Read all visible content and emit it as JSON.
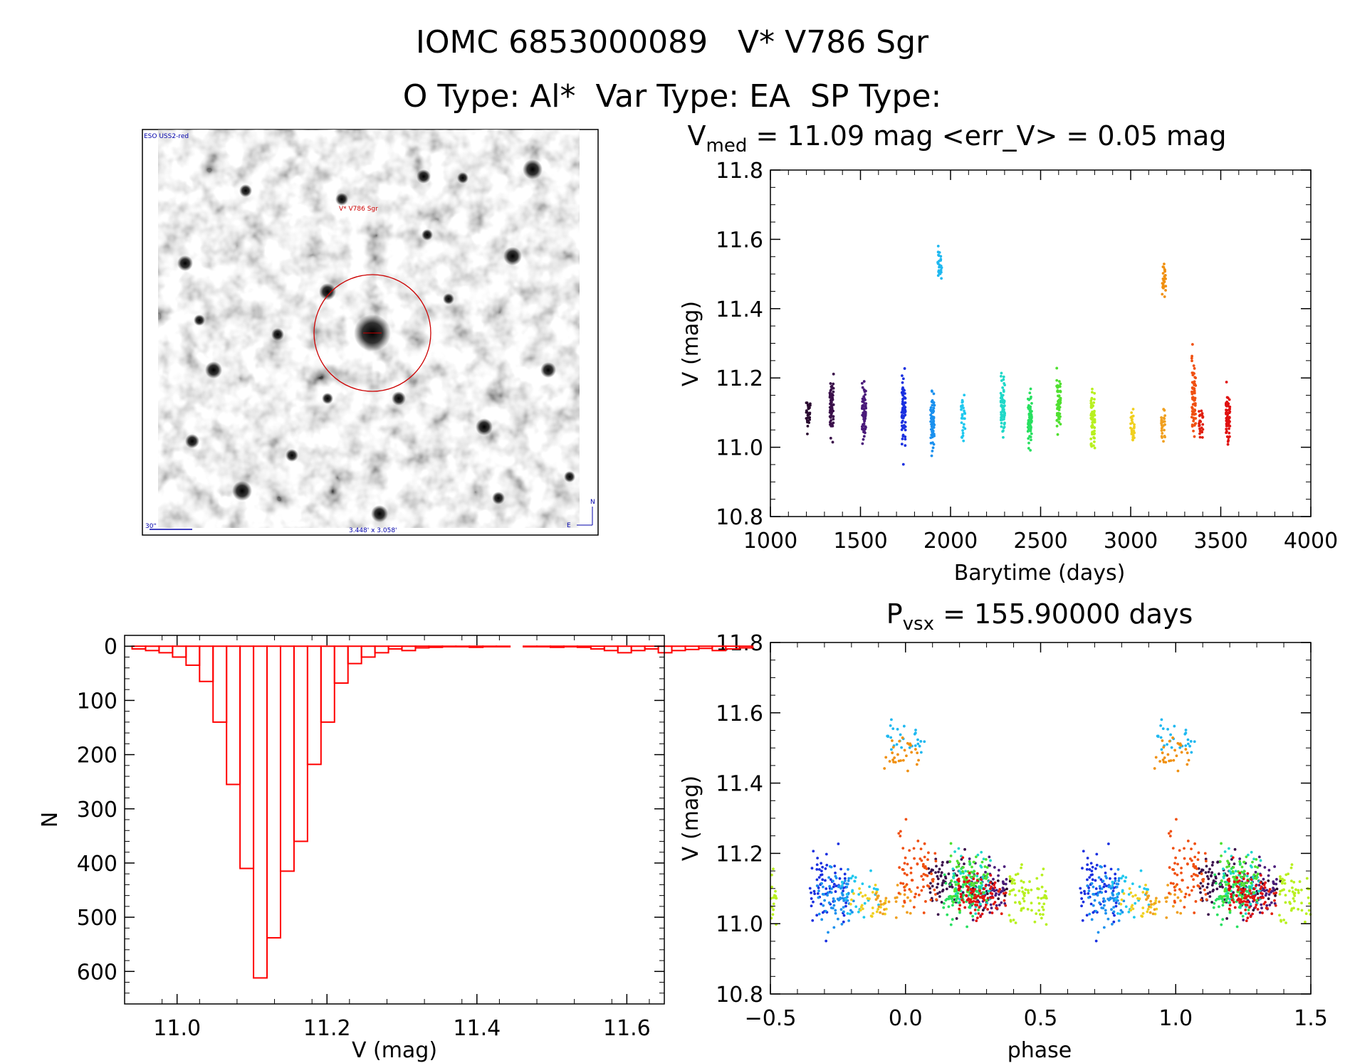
{
  "header": {
    "title_line1": "IOMC 6853000089   V* V786 Sgr",
    "title_line2": "O Type: Al*  Var Type: EA  SP Type:"
  },
  "image_panel": {
    "survey_label": "ESO USS2-red",
    "target_label": "V* V786 Sgr",
    "scale_label": "30\"",
    "fov_label": "3.448' x 3.058'",
    "compass_n": "N",
    "compass_e": "E"
  },
  "colors": {
    "histogram": "#ff0000",
    "axes": "#000000",
    "marker_circle": "#cc0000",
    "image_labels": "#0000aa"
  },
  "chart_data": [
    {
      "id": "lightcurve",
      "type": "scatter",
      "title_main": "V",
      "title_sub": "med",
      "title_rest": " = 11.09 mag <err_V> = 0.05 mag",
      "xlabel": "Barytime (days)",
      "ylabel": "V (mag)",
      "xlim": [
        1000,
        4000
      ],
      "ylim": [
        11.8,
        10.8
      ],
      "y_inverted": true,
      "xticks": [
        "1000",
        "1500",
        "2000",
        "2500",
        "3000",
        "3500",
        "4000"
      ],
      "yticks": [
        "10.8",
        "11.0",
        "11.2",
        "11.4",
        "11.6",
        "11.8"
      ],
      "groups": [
        {
          "t": 1210,
          "color": "#2a0a30",
          "ymin": 10.96,
          "ymax": 11.15,
          "center": 11.09
        },
        {
          "t": 1340,
          "color": "#3a0f4a",
          "ymin": 11.0,
          "ymax": 11.24,
          "center": 11.12
        },
        {
          "t": 1520,
          "color": "#4a1a7a",
          "ymin": 10.95,
          "ymax": 11.19,
          "center": 11.1
        },
        {
          "t": 1740,
          "color": "#1a30e0",
          "ymin": 10.95,
          "ymax": 11.26,
          "center": 11.1
        },
        {
          "t": 1900,
          "color": "#1a90ee",
          "ymin": 10.95,
          "ymax": 11.19,
          "center": 11.08
        },
        {
          "t": 1940,
          "color": "#1fb8f0",
          "ymin": 11.44,
          "ymax": 11.62,
          "center": 11.53
        },
        {
          "t": 2070,
          "color": "#20c8ee",
          "ymin": 10.97,
          "ymax": 11.17,
          "center": 11.08
        },
        {
          "t": 2290,
          "color": "#20d8c8",
          "ymin": 11.02,
          "ymax": 11.26,
          "center": 11.12
        },
        {
          "t": 2440,
          "color": "#28e060",
          "ymin": 10.94,
          "ymax": 11.18,
          "center": 11.07
        },
        {
          "t": 2600,
          "color": "#50e030",
          "ymin": 11.03,
          "ymax": 11.27,
          "center": 11.12
        },
        {
          "t": 2790,
          "color": "#b8f020",
          "ymin": 10.94,
          "ymax": 11.22,
          "center": 11.08
        },
        {
          "t": 3010,
          "color": "#f0d020",
          "ymin": 10.98,
          "ymax": 11.11,
          "center": 11.06
        },
        {
          "t": 3180,
          "color": "#f0a020",
          "ymin": 10.98,
          "ymax": 11.11,
          "center": 11.06
        },
        {
          "t": 3185,
          "color": "#f09010",
          "ymin": 11.4,
          "ymax": 11.55,
          "center": 11.48
        },
        {
          "t": 3350,
          "color": "#f05010",
          "ymin": 11.03,
          "ymax": 11.33,
          "center": 11.15
        },
        {
          "t": 3390,
          "color": "#e02010",
          "ymin": 11.02,
          "ymax": 11.12,
          "center": 11.07
        },
        {
          "t": 3540,
          "color": "#e01010",
          "ymin": 11.0,
          "ymax": 11.21,
          "center": 11.09
        }
      ]
    },
    {
      "id": "phased",
      "type": "scatter",
      "title_main": "P",
      "title_sub": "vsx",
      "title_rest": " = 155.90000 days",
      "xlabel": "phase",
      "ylabel": "V (mag)",
      "xlim": [
        -0.5,
        1.5
      ],
      "ylim": [
        11.8,
        10.8
      ],
      "y_inverted": true,
      "period_days": 155.9,
      "xticks": [
        "−0.5",
        "0.0",
        "0.5",
        "1.0",
        "1.5"
      ],
      "yticks": [
        "10.8",
        "11.0",
        "11.2",
        "11.4",
        "11.6",
        "11.8"
      ]
    },
    {
      "id": "histogram",
      "type": "bar",
      "xlabel": "V (mag)",
      "ylabel": "N",
      "xlim": [
        10.93,
        11.65
      ],
      "ylim": [
        -20,
        660
      ],
      "bin_width": 0.018,
      "bin_start": 10.94,
      "values": [
        5,
        8,
        12,
        20,
        35,
        65,
        140,
        255,
        410,
        612,
        538,
        415,
        360,
        218,
        140,
        68,
        32,
        20,
        12,
        5,
        8,
        3,
        2,
        1,
        1,
        2,
        1,
        1,
        0,
        1,
        1,
        2,
        1,
        2,
        5,
        8,
        12,
        8,
        5,
        12,
        8,
        6,
        4,
        8,
        5,
        3
      ],
      "xticks": [
        "11.0",
        "11.2",
        "11.4",
        "11.6"
      ],
      "yticks": [
        "0",
        "100",
        "200",
        "300",
        "400",
        "500",
        "600"
      ]
    }
  ]
}
